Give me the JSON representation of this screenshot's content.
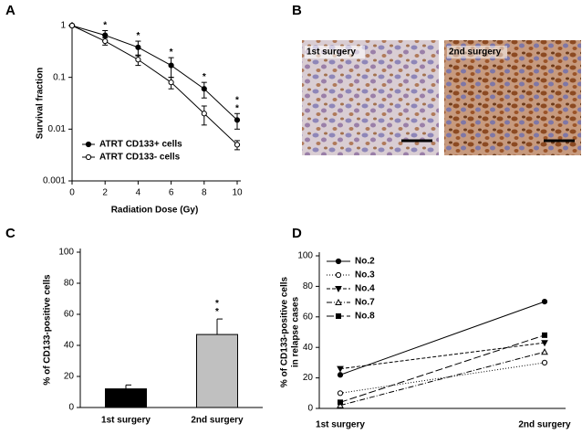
{
  "panels": [
    "A",
    "B",
    "C",
    "D"
  ],
  "micrograph": {
    "labels": [
      "1st surgery",
      "2nd surgery"
    ]
  },
  "chart_data": [
    {
      "type": "line",
      "log_y": true,
      "xlabel": "Radiation Dose (Gy)",
      "ylabel": "Survival fraction",
      "x": [
        0,
        2,
        4,
        6,
        8,
        10
      ],
      "xlim": [
        0,
        10
      ],
      "xticks": [
        0,
        2,
        4,
        6,
        8,
        10
      ],
      "ylim": [
        0.001,
        1
      ],
      "yticks": [
        0.001,
        0.01,
        0.1,
        1
      ],
      "series": [
        {
          "name": "ATRT CD133+ cells",
          "color": "#000000",
          "marker": "filled-circle",
          "line_style": "solid",
          "values": [
            1,
            0.65,
            0.38,
            0.17,
            0.06,
            0.015
          ],
          "errors": [
            0,
            0.15,
            0.12,
            0.07,
            0.02,
            0.005
          ]
        },
        {
          "name": "ATRT CD133- cells",
          "color": "#000000",
          "marker": "open-circle",
          "line_style": "solid",
          "values": [
            1,
            0.5,
            0.22,
            0.08,
            0.02,
            0.005
          ],
          "errors": [
            0,
            0.08,
            0.05,
            0.02,
            0.008,
            0.001
          ]
        }
      ],
      "significance": [
        null,
        "*",
        "*",
        "*",
        "*",
        "**"
      ],
      "legend": "lower-left"
    },
    {
      "type": "bar",
      "ylabel": "% of CD133-positive cells",
      "categories": [
        "1st surgery",
        "2nd surgery"
      ],
      "values": [
        12,
        47
      ],
      "errors": [
        2.5,
        10
      ],
      "colors": [
        "#000000",
        "#c0c0c0"
      ],
      "ylim": [
        0,
        100
      ],
      "yticks": [
        0,
        20,
        40,
        60,
        80,
        100
      ],
      "significance": [
        null,
        "**"
      ]
    },
    {
      "type": "line",
      "ylabel": [
        "% of CD133-positive cells",
        "in relapse cases"
      ],
      "categories": [
        "1st surgery",
        "2nd surgery"
      ],
      "ylim": [
        0,
        100
      ],
      "yticks": [
        0,
        20,
        40,
        60,
        80,
        100
      ],
      "series": [
        {
          "name": "No.2",
          "color": "#000000",
          "marker": "filled-circle",
          "line_style": "solid",
          "values": [
            22,
            70
          ]
        },
        {
          "name": "No.3",
          "color": "#000000",
          "marker": "open-circle",
          "line_style": "dotted",
          "values": [
            10,
            30
          ]
        },
        {
          "name": "No.4",
          "color": "#000000",
          "marker": "filled-triangle-down",
          "line_style": "dashed",
          "values": [
            26,
            43
          ]
        },
        {
          "name": "No.7",
          "color": "#000000",
          "marker": "open-triangle",
          "line_style": "dash-dot",
          "values": [
            2,
            37
          ]
        },
        {
          "name": "No.8",
          "color": "#000000",
          "marker": "filled-square",
          "line_style": "long-dash",
          "values": [
            4,
            48
          ]
        }
      ],
      "legend": "upper-left"
    }
  ]
}
